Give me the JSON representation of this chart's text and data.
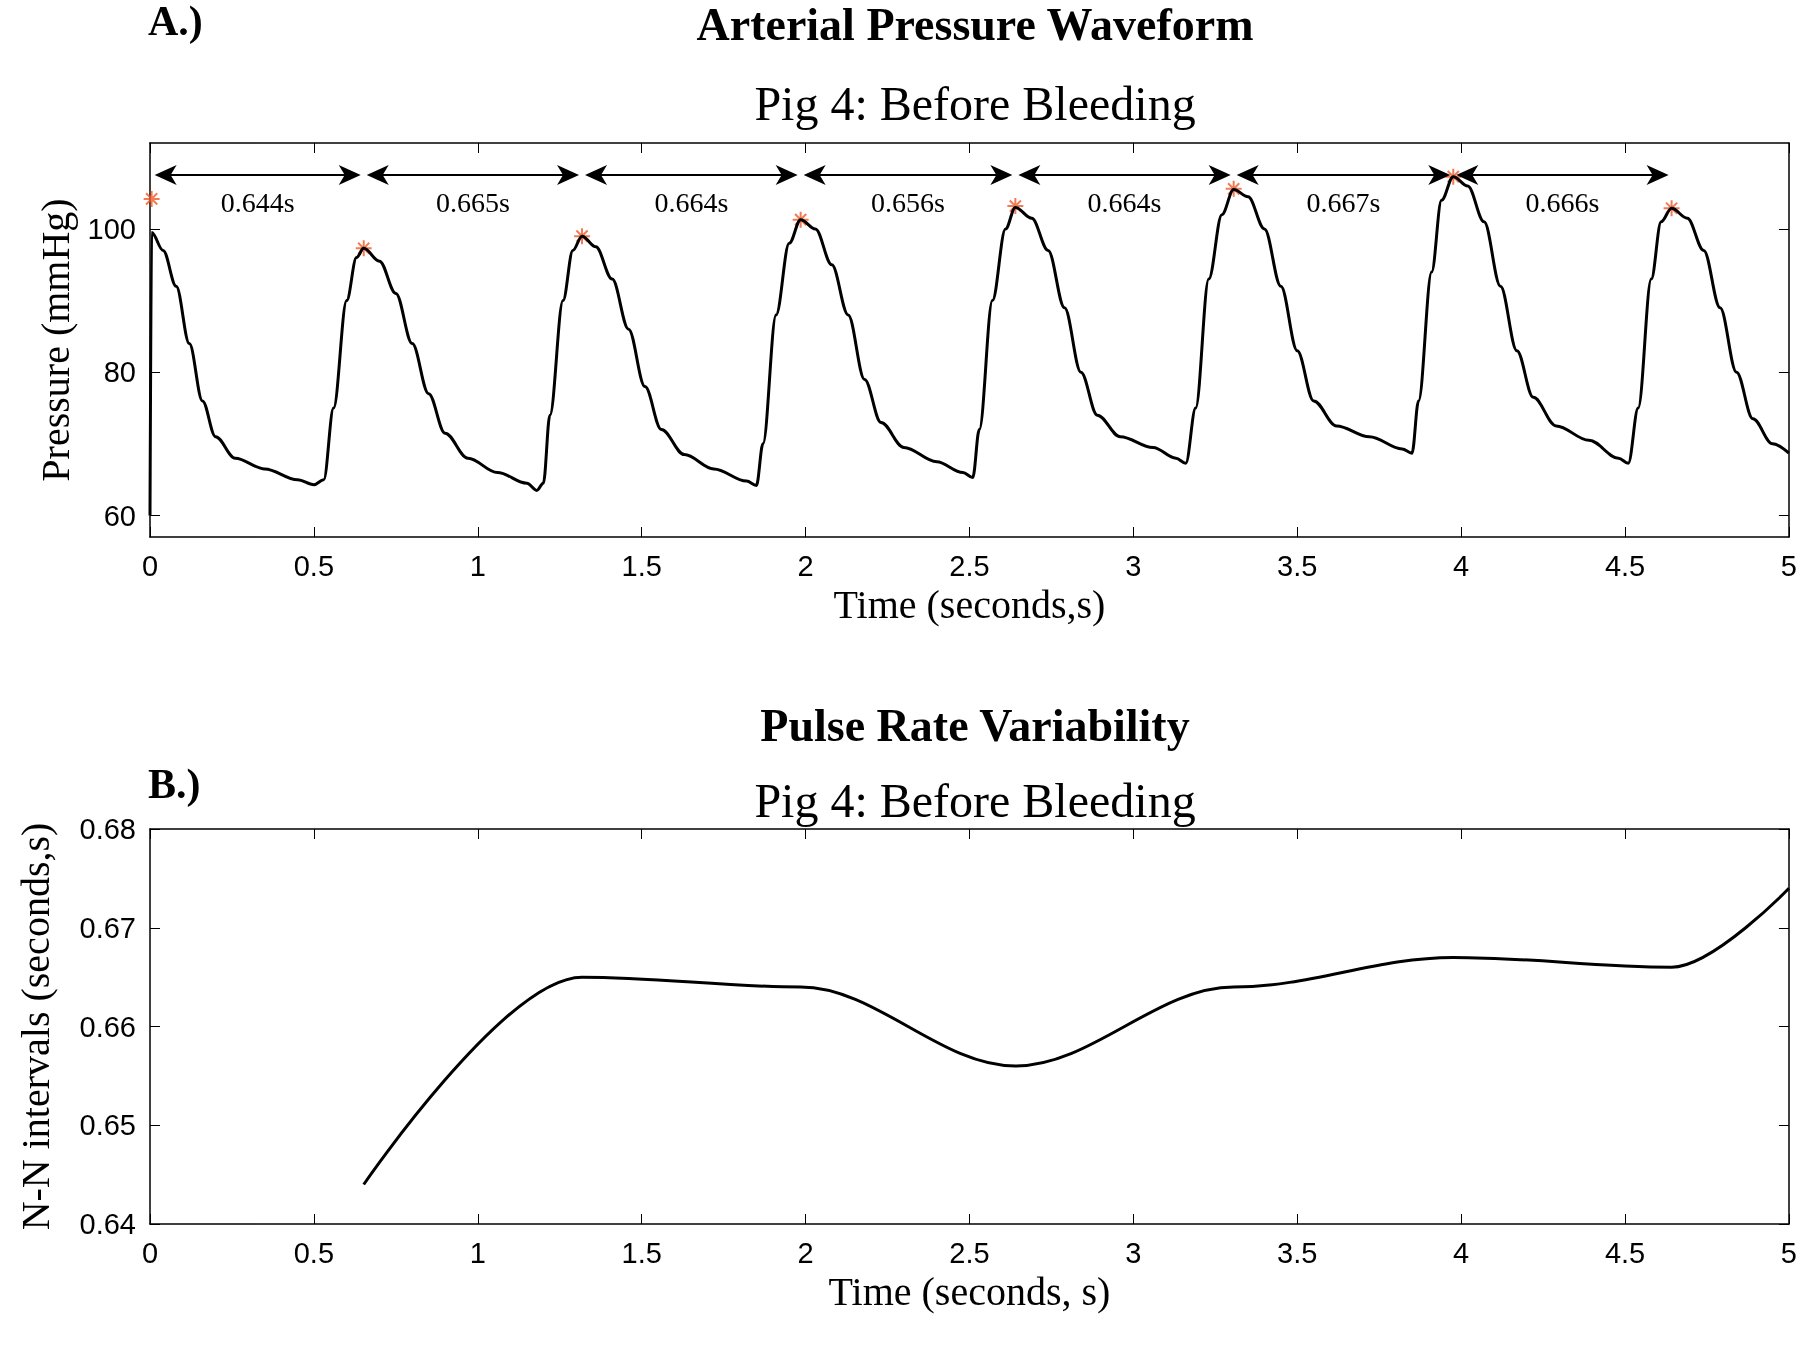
{
  "chart_data": [
    {
      "type": "line",
      "title": "Arterial Pressure Waveform",
      "subtitle": "Pig 4: Before Bleeding",
      "xlabel": "Time (seconds,s)",
      "ylabel": "Pressure (mmHg)",
      "series": [
        {
          "color": "#000000",
          "x": [
            0,
            0.005,
            0.04,
            0.08,
            0.12,
            0.16,
            0.2,
            0.26,
            0.35,
            0.45,
            0.5,
            0.53,
            0.56,
            0.6,
            0.63,
            0.652,
            0.7,
            0.75,
            0.8,
            0.85,
            0.9,
            0.97,
            1.06,
            1.15,
            1.18,
            1.2,
            1.22,
            1.26,
            1.29,
            1.318,
            1.36,
            1.41,
            1.46,
            1.51,
            1.56,
            1.63,
            1.72,
            1.82,
            1.85,
            1.87,
            1.91,
            1.95,
            1.985,
            2.03,
            2.08,
            2.13,
            2.18,
            2.23,
            2.3,
            2.4,
            2.48,
            2.51,
            2.53,
            2.57,
            2.61,
            2.64,
            2.69,
            2.74,
            2.79,
            2.84,
            2.89,
            2.96,
            3.06,
            3.13,
            3.16,
            3.19,
            3.23,
            3.27,
            3.306,
            3.35,
            3.4,
            3.45,
            3.5,
            3.55,
            3.62,
            3.72,
            3.82,
            3.85,
            3.87,
            3.91,
            3.94,
            3.976,
            4.02,
            4.07,
            4.12,
            4.17,
            4.22,
            4.29,
            4.39,
            4.48,
            4.51,
            4.54,
            4.58,
            4.61,
            4.642,
            4.69,
            4.74,
            4.79,
            4.84,
            4.89,
            4.95,
            5
          ],
          "values": [
            60,
            99.5,
            97,
            92,
            84,
            76,
            71,
            68,
            66.5,
            65,
            64.3,
            65,
            75,
            90,
            96,
            97.3,
            95.5,
            91,
            84,
            77,
            71.5,
            68,
            66,
            64.5,
            63.5,
            64.5,
            74,
            90,
            97,
            99,
            97.5,
            93,
            86,
            78,
            72,
            68.5,
            66.5,
            64.8,
            64.2,
            70,
            88,
            98,
            101.3,
            100,
            95,
            88,
            79,
            73,
            69.5,
            67.5,
            66,
            65.3,
            72,
            90,
            100,
            103,
            101.5,
            97,
            89,
            80,
            74,
            71,
            69.5,
            68,
            67.3,
            75,
            93,
            102,
            105.5,
            104.5,
            100,
            92,
            83,
            76,
            72.5,
            71,
            69.3,
            68.7,
            76,
            94,
            104,
            107.3,
            106,
            101,
            92,
            83,
            76.5,
            72.5,
            70.5,
            68,
            67.3,
            75,
            93,
            101,
            102.9,
            101.5,
            97,
            89,
            80,
            73.5,
            70,
            68.7
          ]
        },
        {
          "type": "scatter",
          "marker": "cross",
          "color": "#f05a28",
          "x": [
            0.005,
            0.652,
            1.318,
            1.985,
            2.64,
            3.306,
            3.976,
            4.642
          ],
          "values": [
            104.2,
            97.3,
            99,
            101.3,
            103.2,
            105.6,
            107.3,
            102.9
          ]
        }
      ],
      "xlim": [
        0,
        5
      ],
      "xticks": [
        0,
        0.5,
        1,
        1.5,
        2,
        2.5,
        3,
        3.5,
        4,
        4.5,
        5
      ],
      "ylim": [
        57,
        112
      ],
      "yticks": [
        60,
        80,
        100
      ],
      "grid": false,
      "annotations": [
        "A.)",
        "0.644s",
        "0.665s",
        "0.664s",
        "0.656s",
        "0.664s",
        "0.667s",
        "0.666s"
      ]
    },
    {
      "type": "line",
      "title": "Pulse Rate Variability",
      "subtitle": "Pig 4: Before Bleeding",
      "xlabel": "Time (seconds, s)",
      "ylabel": "N-N intervals (seconds,s)",
      "series": [
        {
          "color": "#000000",
          "x": [
            0.652,
            1.318,
            1.985,
            2.64,
            3.306,
            3.976,
            4.642,
            5
          ],
          "values": [
            0.644,
            0.665,
            0.664,
            0.656,
            0.664,
            0.667,
            0.666,
            0.674
          ]
        }
      ],
      "xlim": [
        0,
        5
      ],
      "xticks": [
        0,
        0.5,
        1,
        1.5,
        2,
        2.5,
        3,
        3.5,
        4,
        4.5,
        5
      ],
      "ylim": [
        0.64,
        0.68
      ],
      "yticks": [
        0.64,
        0.65,
        0.66,
        0.67,
        0.68
      ],
      "grid": false,
      "marker": "none",
      "annotations": [
        "B.)"
      ]
    }
  ]
}
